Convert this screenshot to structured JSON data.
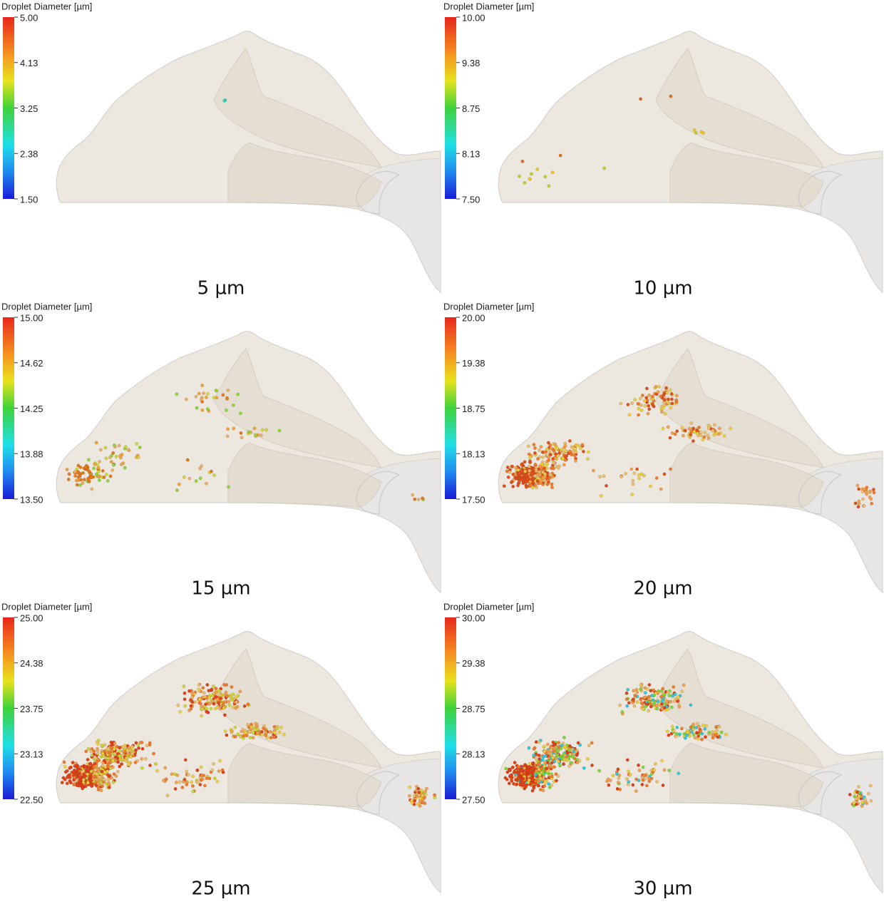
{
  "panels": [
    {
      "legend_title": "Droplet Diameter [µm]",
      "ticks": [
        "5.00",
        "4.13",
        "3.25",
        "2.38",
        "1.50"
      ],
      "caption": "5 µm"
    },
    {
      "legend_title": "Droplet Diameter [µm]",
      "ticks": [
        "10.00",
        "9.38",
        "8.75",
        "8.13",
        "7.50"
      ],
      "caption": "10 µm"
    },
    {
      "legend_title": "Droplet Diameter [µm]",
      "ticks": [
        "15.00",
        "14.62",
        "14.25",
        "13.88",
        "13.50"
      ],
      "caption": "15 µm"
    },
    {
      "legend_title": "Droplet Diameter [µm]",
      "ticks": [
        "20.00",
        "19.38",
        "18.75",
        "18.13",
        "17.50"
      ],
      "caption": "20 µm"
    },
    {
      "legend_title": "Droplet Diameter [µm]",
      "ticks": [
        "25.00",
        "24.38",
        "23.75",
        "23.13",
        "22.50"
      ],
      "caption": "25 µm"
    },
    {
      "legend_title": "Droplet Diameter [µm]",
      "ticks": [
        "30.00",
        "29.38",
        "28.75",
        "28.13",
        "27.50"
      ],
      "caption": "30 µm"
    }
  ]
}
